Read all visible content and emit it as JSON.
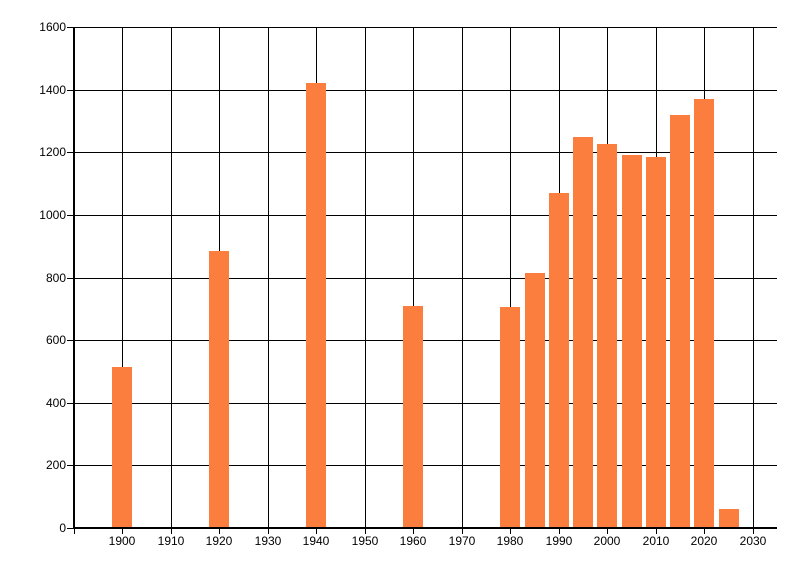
{
  "chart_data": {
    "type": "bar",
    "title": "",
    "xlabel": "",
    "ylabel": "",
    "x": [
      1900,
      1920,
      1940,
      1960,
      1980,
      1985,
      1990,
      1995,
      2000,
      2005,
      2010,
      2015,
      2020,
      2025
    ],
    "values": [
      515,
      885,
      1420,
      710,
      705,
      815,
      1070,
      1250,
      1225,
      1190,
      1185,
      1320,
      1370,
      60
    ],
    "xlim": [
      1890,
      2035
    ],
    "ylim": [
      0,
      1600
    ],
    "x_ticks": [
      1900,
      1910,
      1920,
      1930,
      1940,
      1950,
      1960,
      1970,
      1980,
      1990,
      2000,
      2010,
      2020,
      2030
    ],
    "y_ticks": [
      0,
      200,
      400,
      600,
      800,
      1000,
      1200,
      1400,
      1600
    ],
    "grid": "both",
    "legend": "none",
    "bar_color": "#FB7E3E",
    "grid_color": "#000000",
    "axis_color": "#000000",
    "text_color": "#000000",
    "background_color": "#FFFFFF"
  }
}
